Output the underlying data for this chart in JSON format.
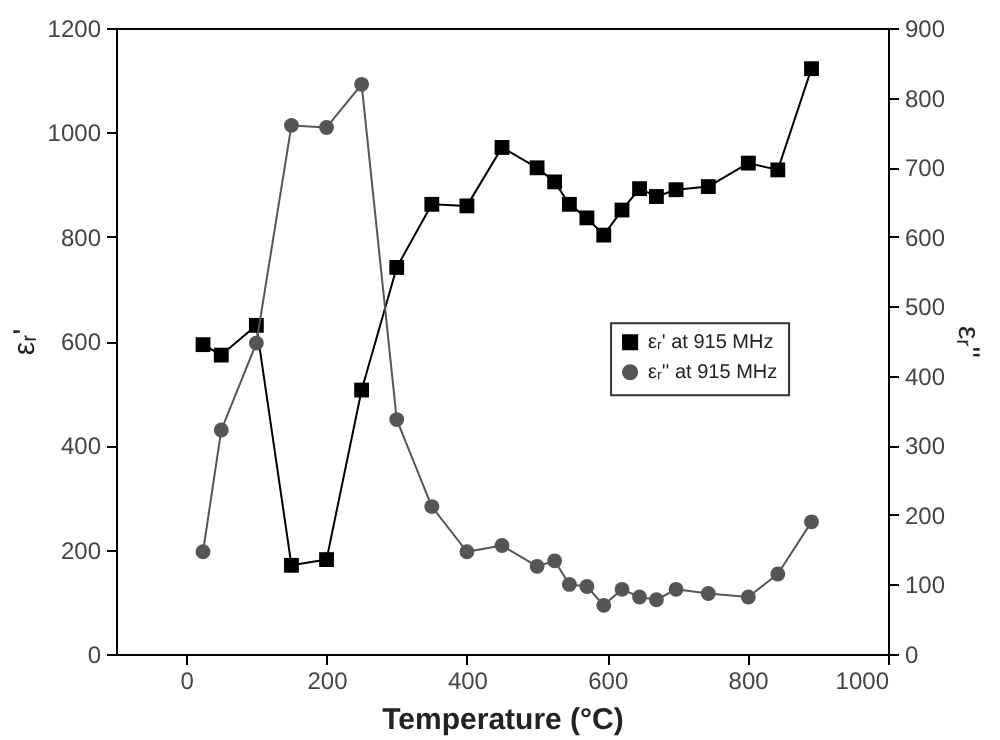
{
  "chart_data": {
    "type": "line",
    "xlabel": "Temperature (°C)",
    "ylabel": "εᵣ'",
    "y2label": "εᵣ''",
    "xlim": [
      -100,
      1000
    ],
    "xticks": [
      0,
      200,
      400,
      600,
      800,
      1000
    ],
    "ylim": [
      0,
      1200
    ],
    "yticks": [
      0,
      200,
      400,
      600,
      800,
      1000,
      1200
    ],
    "y2lim": [
      0,
      900
    ],
    "y2ticks": [
      0,
      100,
      200,
      300,
      400,
      500,
      600,
      700,
      800,
      900
    ],
    "legend": "right",
    "line_style": "solid",
    "series": [
      {
        "name": "εᵣ' at 915 MHz",
        "color": "#000000",
        "marker": "square",
        "x": [
          24,
          50,
          100,
          150,
          200,
          250,
          300,
          350,
          400,
          450,
          500,
          525,
          546,
          571,
          595,
          621,
          646,
          670,
          698,
          744,
          801,
          843,
          891
        ],
        "values": [
          593,
          573,
          630,
          170,
          181,
          506,
          741,
          862,
          859,
          971,
          932,
          905,
          862,
          836,
          803,
          851,
          892,
          877,
          890,
          896,
          941,
          928,
          1122
        ]
      },
      {
        "name": "εᵣ'' at 915 MHz",
        "color": "#555555",
        "marker": "circle",
        "axis": "y2",
        "x": [
          24,
          50,
          100,
          150,
          200,
          250,
          300,
          350,
          400,
          450,
          500,
          525,
          546,
          571,
          595,
          621,
          646,
          670,
          698,
          744,
          801,
          843,
          891
        ],
        "values": [
          147,
          322,
          447,
          760,
          757,
          819,
          337,
          212,
          147,
          156,
          126,
          134,
          100,
          97,
          70,
          93,
          82,
          78,
          93,
          87,
          82,
          115,
          190
        ]
      }
    ]
  }
}
